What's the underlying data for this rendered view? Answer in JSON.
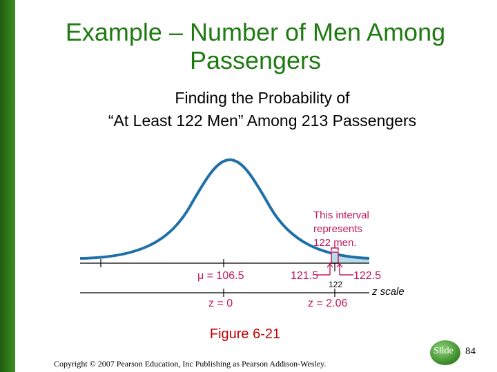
{
  "slide": {
    "title_line1": "Example – Number of Men Among",
    "title_line2": "Passengers",
    "subtitle_line1": "Finding the Probability of",
    "subtitle_line2": "“At Least 122 Men” Among 213 Passengers",
    "figure_caption": "Figure 6-21",
    "copyright": "Copyright © 2007 Pearson Education, Inc Publishing as Pearson Addison-Wesley.",
    "slide_label": "Slide",
    "slide_number": "84"
  },
  "figure": {
    "annotation_lines": [
      "This interval",
      "represents",
      "122 men."
    ],
    "mu_label": "μ = 106.5",
    "lower_bound_label": "121.5",
    "upper_bound_label": "122.5",
    "value_label": "122",
    "z_scale_label": "z scale",
    "z0_label": "z = 0",
    "z_value_label": "z = 2.06",
    "colors": {
      "title": "#1f7a12",
      "curve": "#1f6fa8",
      "annotation": "#c2185b",
      "shade": "#b9dde8",
      "caption": "#c00000"
    }
  }
}
